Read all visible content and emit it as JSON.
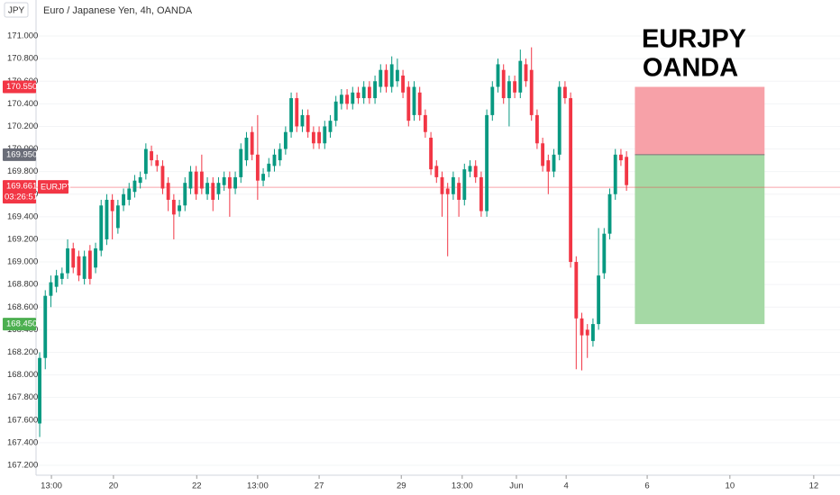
{
  "chart_data": {
    "type": "candlestick",
    "title": "Euro / Japanese Yen, 4h, OANDA",
    "currency": "JPY",
    "annotation": [
      "EURJPY",
      "OANDA"
    ],
    "up_color": "#089981",
    "down_color": "#f23645",
    "x": [
      0,
      1,
      2,
      3,
      4,
      5,
      6,
      7,
      8,
      9,
      10,
      11,
      12,
      13,
      14,
      15,
      16,
      17,
      18,
      19,
      20,
      21,
      22,
      23,
      24,
      25,
      26,
      27,
      28,
      29,
      30,
      31,
      32,
      33,
      34,
      35,
      36,
      37,
      38,
      39,
      40,
      41,
      42,
      43,
      44,
      45,
      46,
      47,
      48,
      49,
      50,
      51,
      52,
      53,
      54,
      55,
      56,
      57,
      58,
      59,
      60,
      61,
      62,
      63,
      64,
      65,
      66,
      67,
      68,
      69,
      70,
      71,
      72,
      73,
      74,
      75,
      76,
      77,
      78,
      79,
      80,
      81,
      82,
      83,
      84,
      85,
      86,
      87,
      88,
      89,
      90,
      91,
      92,
      93,
      94,
      95,
      96,
      97,
      98,
      99,
      100,
      101,
      102,
      103,
      104,
      105
    ],
    "open": [
      167.57,
      168.15,
      168.7,
      168.78,
      168.85,
      168.9,
      169.12,
      169.05,
      168.85,
      169.1,
      168.95,
      169.1,
      169.2,
      169.55,
      169.3,
      169.5,
      169.55,
      169.62,
      169.7,
      169.78,
      169.98,
      169.9,
      169.85,
      169.7,
      169.55,
      169.45,
      169.5,
      169.65,
      169.8,
      169.8,
      169.6,
      169.7,
      169.6,
      169.68,
      169.75,
      169.65,
      169.75,
      169.9,
      170.15,
      169.95,
      169.72,
      169.8,
      169.85,
      169.9,
      170.0,
      170.15,
      170.45,
      170.2,
      170.3,
      170.15,
      170.15,
      170.05,
      170.15,
      170.25,
      170.4,
      170.48,
      170.4,
      170.5,
      170.45,
      170.55,
      170.45,
      170.55,
      170.7,
      170.55,
      170.6,
      170.65,
      170.55,
      170.3,
      170.5,
      170.3,
      170.1,
      169.85,
      169.75,
      169.65,
      169.6,
      169.7,
      169.55,
      169.8,
      169.85,
      169.75,
      169.45,
      170.3,
      170.55,
      170.7,
      170.45,
      170.6,
      170.5,
      170.75,
      170.7,
      170.3,
      170.05,
      169.9,
      169.8,
      169.95,
      170.55,
      170.45,
      169.0,
      168.5,
      168.4,
      168.3,
      168.45,
      168.9,
      169.25,
      169.6,
      169.95,
      169.93
    ],
    "high": [
      168.2,
      168.75,
      168.88,
      168.93,
      168.95,
      169.2,
      169.17,
      169.1,
      169.1,
      169.15,
      169.17,
      169.55,
      169.6,
      169.6,
      169.55,
      169.65,
      169.7,
      169.77,
      169.8,
      170.05,
      170.03,
      169.95,
      169.9,
      169.75,
      169.6,
      169.55,
      169.75,
      169.85,
      169.85,
      169.95,
      169.75,
      169.75,
      169.75,
      169.8,
      169.8,
      169.8,
      170.05,
      170.15,
      170.2,
      170.3,
      169.83,
      169.92,
      170.0,
      170.05,
      170.2,
      170.5,
      170.5,
      170.35,
      170.35,
      170.2,
      170.2,
      170.25,
      170.3,
      170.47,
      170.53,
      170.53,
      170.55,
      170.55,
      170.6,
      170.6,
      170.65,
      170.75,
      170.75,
      170.82,
      170.8,
      170.7,
      170.6,
      170.6,
      170.55,
      170.35,
      170.15,
      169.9,
      169.8,
      169.7,
      169.8,
      169.75,
      169.87,
      169.9,
      169.9,
      169.8,
      170.35,
      170.6,
      170.8,
      170.75,
      170.65,
      170.65,
      170.88,
      170.8,
      170.9,
      170.35,
      170.1,
      169.95,
      170.0,
      170.6,
      170.6,
      170.5,
      169.05,
      168.55,
      168.45,
      168.5,
      169.3,
      169.3,
      169.65,
      170.0,
      170.0,
      169.98
    ],
    "low": [
      167.45,
      168.05,
      168.6,
      168.73,
      168.8,
      168.85,
      168.9,
      168.83,
      168.8,
      168.8,
      168.9,
      169.05,
      169.15,
      169.2,
      169.25,
      169.45,
      169.5,
      169.57,
      169.65,
      169.73,
      169.85,
      169.8,
      169.6,
      169.45,
      169.2,
      169.4,
      169.45,
      169.6,
      169.55,
      169.6,
      169.55,
      169.45,
      169.55,
      169.63,
      169.4,
      169.6,
      169.7,
      169.85,
      169.9,
      169.55,
      169.67,
      169.75,
      169.8,
      169.85,
      169.95,
      170.1,
      170.15,
      170.15,
      170.1,
      170.0,
      170.0,
      170.0,
      170.1,
      170.2,
      170.35,
      170.35,
      170.35,
      170.4,
      170.4,
      170.4,
      170.4,
      170.5,
      170.5,
      170.5,
      170.55,
      170.45,
      170.2,
      170.25,
      170.25,
      170.1,
      169.77,
      169.7,
      169.4,
      169.05,
      169.55,
      169.4,
      169.5,
      169.75,
      169.7,
      169.4,
      169.4,
      170.25,
      170.5,
      170.4,
      170.2,
      170.45,
      170.45,
      170.55,
      170.25,
      170.0,
      169.8,
      169.6,
      169.75,
      169.9,
      170.4,
      168.95,
      168.05,
      168.04,
      168.15,
      168.25,
      168.4,
      168.85,
      169.2,
      169.55,
      169.85,
      169.63
    ],
    "close": [
      168.15,
      168.7,
      168.82,
      168.88,
      168.9,
      169.12,
      168.95,
      168.88,
      169.05,
      168.85,
      169.12,
      169.5,
      169.55,
      169.45,
      169.5,
      169.6,
      169.65,
      169.72,
      169.75,
      170.0,
      169.9,
      169.85,
      169.65,
      169.55,
      169.42,
      169.5,
      169.7,
      169.8,
      169.6,
      169.65,
      169.7,
      169.55,
      169.7,
      169.75,
      169.65,
      169.75,
      170.0,
      170.1,
      169.95,
      169.72,
      169.78,
      169.87,
      169.95,
      170.0,
      170.15,
      170.45,
      170.2,
      170.3,
      170.15,
      170.05,
      170.05,
      170.2,
      170.25,
      170.42,
      170.48,
      170.4,
      170.5,
      170.45,
      170.55,
      170.45,
      170.6,
      170.7,
      170.55,
      170.75,
      170.7,
      170.5,
      170.25,
      170.55,
      170.3,
      170.15,
      169.82,
      169.75,
      169.6,
      169.6,
      169.75,
      169.55,
      169.82,
      169.85,
      169.75,
      169.45,
      170.3,
      170.55,
      170.75,
      170.45,
      170.6,
      170.5,
      170.78,
      170.6,
      170.3,
      170.05,
      169.85,
      169.8,
      169.95,
      170.55,
      170.45,
      169.0,
      168.5,
      168.35,
      168.35,
      168.45,
      168.88,
      169.25,
      169.6,
      169.95,
      169.9,
      169.68
    ],
    "xlim": [
      -0.65,
      143.2
    ],
    "ylim": [
      167.112,
      171.319
    ],
    "xticks": [
      {
        "value": 2.1,
        "label": "13:00"
      },
      {
        "value": 13.2,
        "label": "20"
      },
      {
        "value": 28.1,
        "label": "22"
      },
      {
        "value": 39,
        "label": "13:00"
      },
      {
        "value": 50,
        "label": "27"
      },
      {
        "value": 64.7,
        "label": "29"
      },
      {
        "value": 75.6,
        "label": "13:00"
      },
      {
        "value": 85.3,
        "label": "Jun"
      },
      {
        "value": 94.2,
        "label": "4"
      },
      {
        "value": 108.7,
        "label": "6"
      },
      {
        "value": 123.5,
        "label": "10"
      },
      {
        "value": 138.5,
        "label": "12"
      }
    ],
    "yticks": [
      {
        "value": 171.0,
        "label": "171.000"
      },
      {
        "value": 170.8,
        "label": "170.800"
      },
      {
        "value": 170.6,
        "label": "170.600"
      },
      {
        "value": 170.4,
        "label": "170.400"
      },
      {
        "value": 170.2,
        "label": "170.200"
      },
      {
        "value": 170.0,
        "label": "170.000"
      },
      {
        "value": 169.8,
        "label": "169.800"
      },
      {
        "value": 169.6,
        "label": "169.600"
      },
      {
        "value": 169.4,
        "label": "169.400"
      },
      {
        "value": 169.2,
        "label": "169.200"
      },
      {
        "value": 169.0,
        "label": "169.000"
      },
      {
        "value": 168.8,
        "label": "168.800"
      },
      {
        "value": 168.6,
        "label": "168.600"
      },
      {
        "value": 168.4,
        "label": "168.400"
      },
      {
        "value": 168.2,
        "label": "168.200"
      },
      {
        "value": 168.0,
        "label": "168.000"
      },
      {
        "value": 167.8,
        "label": "167.800"
      },
      {
        "value": 167.6,
        "label": "167.600"
      },
      {
        "value": 167.4,
        "label": "167.400"
      },
      {
        "value": 167.2,
        "label": "167.200"
      }
    ],
    "position": {
      "x_start": 106.5,
      "x_end": 129.7,
      "stop": 170.55,
      "entry": 169.95,
      "target": 168.45,
      "stop_color": "#f7a1a8",
      "target_color": "#a5d9a5"
    },
    "price_markers": [
      {
        "value": 170.55,
        "label": "170.550",
        "color": "#f23645"
      },
      {
        "value": 169.95,
        "label": "169.950",
        "color": "#6a6d78"
      },
      {
        "value": 168.45,
        "label": "168.450",
        "color": "#4caf50"
      }
    ],
    "current_price": {
      "value": 169.661,
      "label": "169.661",
      "symbol": "EURJPY",
      "countdown": "03:26:51",
      "color": "#f23645"
    }
  }
}
